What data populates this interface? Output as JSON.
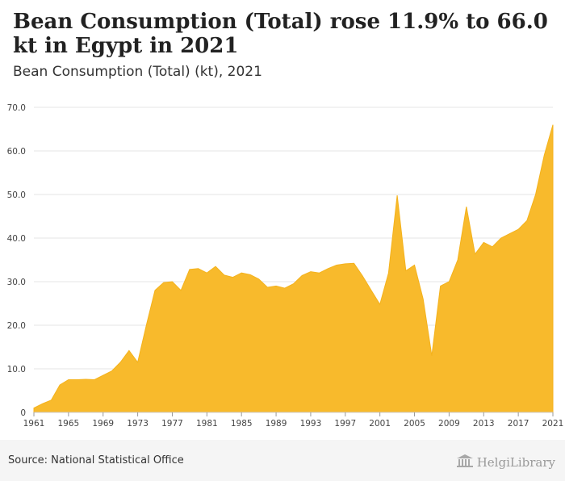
{
  "header": {
    "title": "Bean Consumption (Total) rose 11.9% to 66.0 kt in Egypt in 2021",
    "subtitle": "Bean Consumption (Total) (kt), 2021"
  },
  "footer": {
    "source": "Source: National Statistical Office",
    "logo_text": "HelgiLibrary"
  },
  "colors": {
    "area_fill": "#f8ba2c",
    "area_stroke": "#f4b21c",
    "grid": "#e6e6e6",
    "axis_text": "#444444"
  },
  "chart_data": {
    "type": "area",
    "title": "Bean Consumption (Total) (kt), 2021",
    "xlabel": "",
    "ylabel": "",
    "xlim": [
      1961,
      2021
    ],
    "ylim": [
      0,
      70
    ],
    "grid": true,
    "y_ticks": [
      0,
      10.0,
      20.0,
      30.0,
      40.0,
      50.0,
      60.0,
      70.0
    ],
    "y_tick_labels": [
      "0",
      "10.0",
      "20.0",
      "30.0",
      "40.0",
      "50.0",
      "60.0",
      "70.0"
    ],
    "x_ticks": [
      1961,
      1965,
      1969,
      1973,
      1977,
      1981,
      1985,
      1989,
      1993,
      1997,
      2001,
      2005,
      2009,
      2013,
      2017,
      2021
    ],
    "x": [
      1961,
      1962,
      1963,
      1964,
      1965,
      1966,
      1967,
      1968,
      1969,
      1970,
      1971,
      1972,
      1973,
      1974,
      1975,
      1976,
      1977,
      1978,
      1979,
      1980,
      1981,
      1982,
      1983,
      1984,
      1985,
      1986,
      1987,
      1988,
      1989,
      1990,
      1991,
      1992,
      1993,
      1994,
      1995,
      1996,
      1997,
      1998,
      1999,
      2000,
      2001,
      2002,
      2003,
      2004,
      2005,
      2006,
      2007,
      2008,
      2009,
      2010,
      2011,
      2012,
      2013,
      2014,
      2015,
      2016,
      2017,
      2018,
      2019,
      2020,
      2021
    ],
    "series": [
      {
        "name": "Bean Consumption (Total) (kt)",
        "values": [
          1.0,
          2.0,
          2.8,
          6.3,
          7.5,
          7.5,
          7.6,
          7.5,
          8.5,
          9.5,
          11.5,
          14.2,
          11.5,
          20.0,
          28.0,
          29.8,
          30.0,
          28.0,
          32.8,
          33.0,
          32.0,
          33.5,
          31.5,
          31.0,
          32.0,
          31.6,
          30.6,
          28.7,
          29.0,
          28.5,
          29.5,
          31.4,
          32.3,
          32.0,
          33.0,
          33.8,
          34.1,
          34.2,
          31.3,
          28.0,
          24.8,
          32.0,
          49.8,
          32.5,
          33.8,
          26.0,
          13.0,
          29.0,
          30.0,
          35.0,
          47.2,
          36.3,
          39.0,
          38.0,
          40.0,
          41.0,
          42.0,
          44.0,
          50.0,
          59.0,
          66.0
        ]
      }
    ]
  }
}
